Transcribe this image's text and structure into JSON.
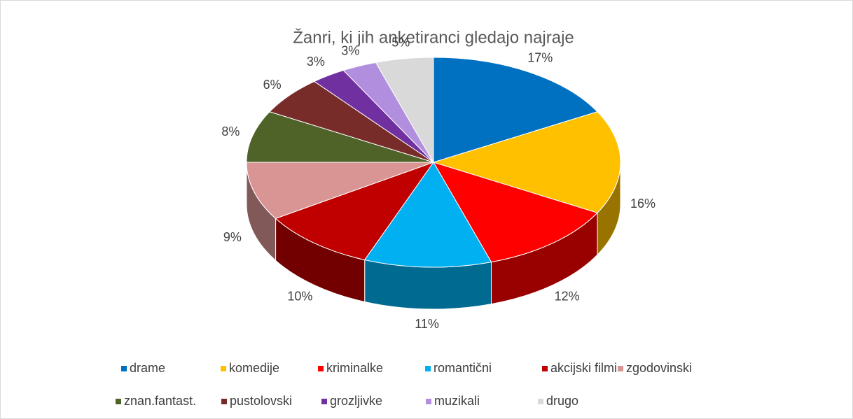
{
  "chart_data": {
    "type": "pie3d",
    "title": "Žanri, ki jih anketiranci gledajo najraje",
    "categories": [
      "drame",
      "komedije",
      "kriminalke",
      "romantični",
      "akcijski filmi",
      "zgodovinski",
      "znan.fantast.",
      "pustolovski",
      "grozljivke",
      "muzikali",
      "drugo"
    ],
    "values": [
      17,
      16,
      12,
      11,
      10,
      9,
      8,
      6,
      3,
      3,
      5
    ],
    "value_labels": [
      "17%",
      "16%",
      "12%",
      "11%",
      "10%",
      "9%",
      "8%",
      "6%",
      "3%",
      "3%",
      "5%"
    ],
    "colors": [
      "#0070C0",
      "#FFC000",
      "#FF0000",
      "#00B0F0",
      "#C00000",
      "#D99594",
      "#4F6228",
      "#772C2A",
      "#7030A0",
      "#B28FDE",
      "#D9D9D9"
    ],
    "legend": "bottom"
  }
}
